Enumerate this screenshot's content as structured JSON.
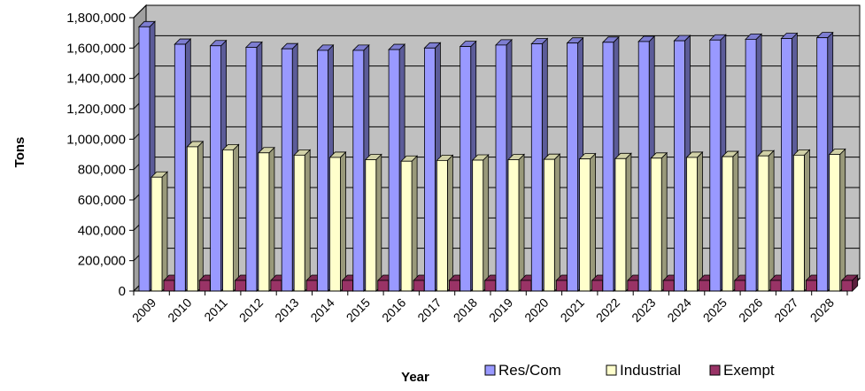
{
  "chart_data": {
    "type": "bar",
    "categories": [
      "2009",
      "2010",
      "2011",
      "2012",
      "2013",
      "2014",
      "2015",
      "2016",
      "2017",
      "2018",
      "2019",
      "2020",
      "2021",
      "2022",
      "2023",
      "2024",
      "2025",
      "2026",
      "2027",
      "2028"
    ],
    "series": [
      {
        "name": "Res/Com",
        "values": [
          1740000,
          1625000,
          1615000,
          1605000,
          1595000,
          1585000,
          1585000,
          1590000,
          1600000,
          1610000,
          1620000,
          1628000,
          1633000,
          1638000,
          1643000,
          1648000,
          1653000,
          1658000,
          1663000,
          1668000
        ]
      },
      {
        "name": "Industrial",
        "values": [
          750000,
          950000,
          930000,
          910000,
          895000,
          880000,
          865000,
          855000,
          860000,
          862000,
          865000,
          867000,
          870000,
          872000,
          875000,
          880000,
          885000,
          890000,
          895000,
          900000
        ]
      },
      {
        "name": "Exempt",
        "values": [
          70000,
          70000,
          70000,
          70000,
          70000,
          70000,
          70000,
          70000,
          70000,
          70000,
          70000,
          70000,
          70000,
          70000,
          70000,
          70000,
          70000,
          70000,
          70000,
          70000
        ]
      }
    ],
    "ylim": [
      0,
      1800000
    ],
    "yticks": [
      0,
      200000,
      400000,
      600000,
      800000,
      1000000,
      1200000,
      1400000,
      1600000,
      1800000
    ],
    "ytick_labels": [
      "0",
      "200,000",
      "400,000",
      "600,000",
      "800,000",
      "1,000,000",
      "1,200,000",
      "1,400,000",
      "1,600,000",
      "1,800,000"
    ],
    "xlabel": "Year",
    "ylabel": "Tons",
    "grid": true,
    "legend_position": "bottom",
    "colors": {
      "Res/Com": "#9999ff",
      "Industrial": "#ffffcc",
      "Exempt": "#993366",
      "plot_background": "#c0c0c0"
    }
  }
}
